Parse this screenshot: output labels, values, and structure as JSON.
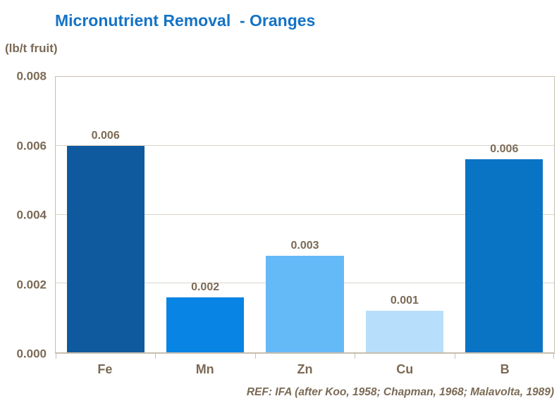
{
  "title": "Micronutrient Removal  - Oranges",
  "units_label": "(lb/t fruit)",
  "reference": "REF: IFA (after Koo, 1958; Chapman, 1968; Malavolta, 1989)",
  "colors": {
    "title_text": "#1473C6",
    "axis_text": "#7B6A55",
    "gridline": "#DCD5C9",
    "plot_border": "#C8BEAE",
    "background": "#FFFFFF"
  },
  "chart_data": {
    "type": "bar",
    "categories": [
      "Fe",
      "Mn",
      "Zn",
      "Cu",
      "B"
    ],
    "values": [
      0.006,
      0.0016,
      0.0028,
      0.0012,
      0.0056
    ],
    "bar_labels": [
      "0.006",
      "0.002",
      "0.003",
      "0.001",
      "0.006"
    ],
    "bar_colors": [
      "#0F5A9E",
      "#0884E4",
      "#64B9F7",
      "#B7DFFB",
      "#0A74C4"
    ],
    "title": "Micronutrient Removal  - Oranges",
    "xlabel": "",
    "ylabel": "(lb/t fruit)",
    "ylim": [
      0,
      0.008
    ],
    "yticks": [
      0,
      0.002,
      0.004,
      0.006,
      0.008
    ],
    "ytick_labels": [
      "0.000",
      "0.002",
      "0.004",
      "0.006",
      "0.008"
    ],
    "grid": "horizontal",
    "legend": "none"
  }
}
